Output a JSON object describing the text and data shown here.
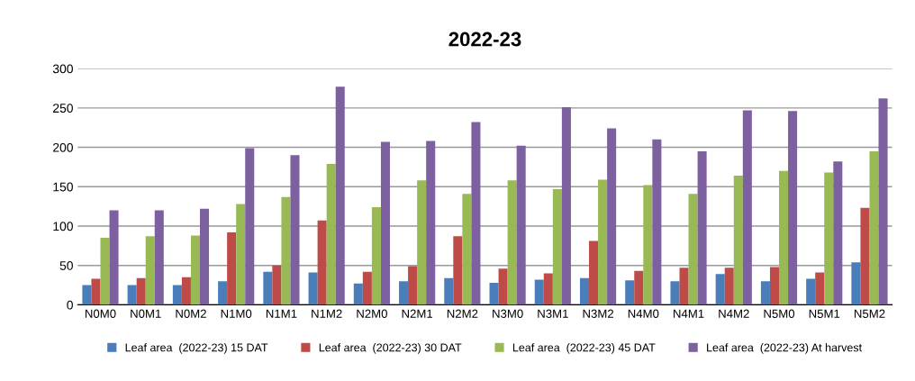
{
  "chart_data": {
    "type": "bar",
    "title": "2022-23",
    "categories": [
      "N0M0",
      "N0M1",
      "N0M2",
      "N1M0",
      "N1M1",
      "N1M2",
      "N2M0",
      "N2M1",
      "N2M2",
      "N3M0",
      "N3M1",
      "N3M2",
      "N4M0",
      "N4M1",
      "N4M2",
      "N5M0",
      "N5M1",
      "N5M2"
    ],
    "series": [
      {
        "name": "Leaf area  (2022-23) 15 DAT",
        "color": "#4a7ebb",
        "values": [
          25,
          25,
          25,
          30,
          42,
          41,
          27,
          30,
          34,
          28,
          32,
          34,
          31,
          30,
          39,
          30,
          33,
          54
        ]
      },
      {
        "name": "Leaf area  (2022-23) 30 DAT",
        "color": "#be4b48",
        "values": [
          33,
          34,
          35,
          92,
          50,
          107,
          42,
          49,
          87,
          46,
          40,
          81,
          43,
          47,
          47,
          48,
          41,
          123
        ]
      },
      {
        "name": "Leaf area  (2022-23) 45 DAT",
        "color": "#98b954",
        "values": [
          85,
          87,
          88,
          128,
          137,
          179,
          124,
          158,
          141,
          158,
          147,
          159,
          152,
          141,
          164,
          170,
          168,
          195
        ]
      },
      {
        "name": "Leaf area  (2022-23) At harvest",
        "color": "#7d60a0",
        "values": [
          120,
          120,
          122,
          199,
          190,
          277,
          207,
          208,
          232,
          202,
          251,
          224,
          210,
          195,
          247,
          246,
          182,
          262
        ]
      }
    ],
    "ylim": [
      0,
      300
    ],
    "yticks": [
      0,
      50,
      100,
      150,
      200,
      250,
      300
    ],
    "grid": "y",
    "legend": "bottom"
  }
}
